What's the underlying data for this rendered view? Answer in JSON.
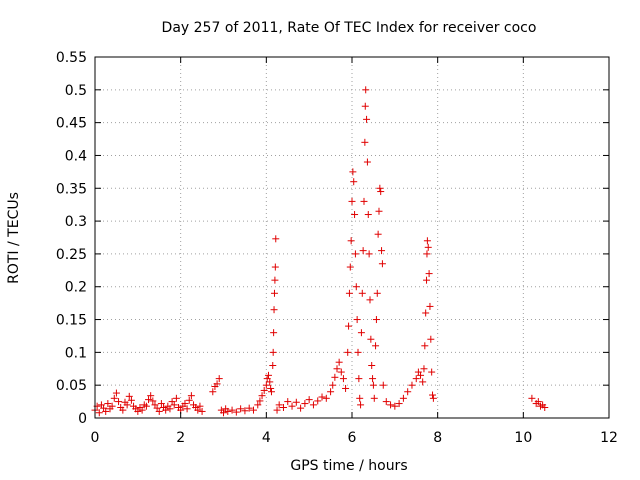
{
  "chart_data": {
    "type": "scatter",
    "title": "Day 257 of 2011, Rate Of TEC Index for receiver coco",
    "xlabel": "GPS time / hours",
    "ylabel": "ROTI / TECUs",
    "xlim": [
      0,
      12
    ],
    "ylim": [
      0,
      0.55
    ],
    "xticks": [
      "0",
      "2",
      "4",
      "6",
      "8",
      "10",
      "12"
    ],
    "yticks": [
      "0",
      "0.05",
      "0.1",
      "0.15",
      "0.2",
      "0.25",
      "0.3",
      "0.35",
      "0.4",
      "0.45",
      "0.5",
      "0.55"
    ],
    "grid": true,
    "marker": "+",
    "color": "#e00000",
    "points": [
      [
        0.0,
        0.012
      ],
      [
        0.05,
        0.018
      ],
      [
        0.1,
        0.008
      ],
      [
        0.15,
        0.02
      ],
      [
        0.2,
        0.015
      ],
      [
        0.25,
        0.01
      ],
      [
        0.3,
        0.022
      ],
      [
        0.35,
        0.014
      ],
      [
        0.4,
        0.018
      ],
      [
        0.45,
        0.03
      ],
      [
        0.5,
        0.038
      ],
      [
        0.55,
        0.025
      ],
      [
        0.6,
        0.016
      ],
      [
        0.65,
        0.012
      ],
      [
        0.7,
        0.024
      ],
      [
        0.75,
        0.02
      ],
      [
        0.8,
        0.033
      ],
      [
        0.85,
        0.027
      ],
      [
        0.9,
        0.018
      ],
      [
        0.95,
        0.014
      ],
      [
        1.0,
        0.01
      ],
      [
        1.05,
        0.016
      ],
      [
        1.1,
        0.012
      ],
      [
        1.15,
        0.02
      ],
      [
        1.2,
        0.018
      ],
      [
        1.25,
        0.028
      ],
      [
        1.3,
        0.034
      ],
      [
        1.35,
        0.026
      ],
      [
        1.4,
        0.02
      ],
      [
        1.45,
        0.015
      ],
      [
        1.5,
        0.01
      ],
      [
        1.55,
        0.022
      ],
      [
        1.6,
        0.016
      ],
      [
        1.65,
        0.012
      ],
      [
        1.7,
        0.018
      ],
      [
        1.75,
        0.014
      ],
      [
        1.8,
        0.025
      ],
      [
        1.85,
        0.02
      ],
      [
        1.9,
        0.03
      ],
      [
        1.95,
        0.016
      ],
      [
        2.0,
        0.012
      ],
      [
        2.05,
        0.018
      ],
      [
        2.1,
        0.022
      ],
      [
        2.15,
        0.014
      ],
      [
        2.2,
        0.027
      ],
      [
        2.25,
        0.034
      ],
      [
        2.3,
        0.02
      ],
      [
        2.35,
        0.016
      ],
      [
        2.4,
        0.012
      ],
      [
        2.45,
        0.018
      ],
      [
        2.5,
        0.01
      ],
      [
        2.75,
        0.04
      ],
      [
        2.8,
        0.048
      ],
      [
        2.85,
        0.052
      ],
      [
        2.9,
        0.06
      ],
      [
        2.95,
        0.012
      ],
      [
        3.0,
        0.008
      ],
      [
        3.05,
        0.014
      ],
      [
        3.1,
        0.01
      ],
      [
        3.2,
        0.012
      ],
      [
        3.3,
        0.009
      ],
      [
        3.4,
        0.014
      ],
      [
        3.5,
        0.011
      ],
      [
        3.6,
        0.015
      ],
      [
        3.7,
        0.012
      ],
      [
        3.8,
        0.02
      ],
      [
        3.85,
        0.026
      ],
      [
        3.9,
        0.034
      ],
      [
        3.95,
        0.042
      ],
      [
        4.0,
        0.05
      ],
      [
        4.02,
        0.06
      ],
      [
        4.05,
        0.065
      ],
      [
        4.08,
        0.055
      ],
      [
        4.1,
        0.045
      ],
      [
        4.12,
        0.04
      ],
      [
        4.15,
        0.08
      ],
      [
        4.16,
        0.1
      ],
      [
        4.17,
        0.13
      ],
      [
        4.18,
        0.165
      ],
      [
        4.19,
        0.19
      ],
      [
        4.2,
        0.21
      ],
      [
        4.21,
        0.23
      ],
      [
        4.22,
        0.273
      ],
      [
        4.25,
        0.012
      ],
      [
        4.3,
        0.02
      ],
      [
        4.4,
        0.016
      ],
      [
        4.5,
        0.025
      ],
      [
        4.6,
        0.018
      ],
      [
        4.7,
        0.024
      ],
      [
        4.8,
        0.015
      ],
      [
        4.9,
        0.022
      ],
      [
        5.0,
        0.028
      ],
      [
        5.1,
        0.02
      ],
      [
        5.2,
        0.026
      ],
      [
        5.3,
        0.032
      ],
      [
        5.4,
        0.03
      ],
      [
        5.5,
        0.04
      ],
      [
        5.55,
        0.05
      ],
      [
        5.6,
        0.062
      ],
      [
        5.65,
        0.075
      ],
      [
        5.7,
        0.085
      ],
      [
        5.75,
        0.07
      ],
      [
        5.8,
        0.06
      ],
      [
        5.85,
        0.045
      ],
      [
        5.9,
        0.1
      ],
      [
        5.92,
        0.14
      ],
      [
        5.94,
        0.19
      ],
      [
        5.96,
        0.23
      ],
      [
        5.98,
        0.27
      ],
      [
        6.0,
        0.33
      ],
      [
        6.02,
        0.375
      ],
      [
        6.04,
        0.36
      ],
      [
        6.06,
        0.31
      ],
      [
        6.08,
        0.25
      ],
      [
        6.1,
        0.2
      ],
      [
        6.12,
        0.15
      ],
      [
        6.14,
        0.1
      ],
      [
        6.16,
        0.06
      ],
      [
        6.18,
        0.03
      ],
      [
        6.2,
        0.02
      ],
      [
        6.22,
        0.13
      ],
      [
        6.24,
        0.19
      ],
      [
        6.26,
        0.255
      ],
      [
        6.28,
        0.33
      ],
      [
        6.3,
        0.42
      ],
      [
        6.31,
        0.475
      ],
      [
        6.32,
        0.5
      ],
      [
        6.34,
        0.455
      ],
      [
        6.36,
        0.39
      ],
      [
        6.38,
        0.31
      ],
      [
        6.4,
        0.25
      ],
      [
        6.42,
        0.18
      ],
      [
        6.44,
        0.12
      ],
      [
        6.46,
        0.08
      ],
      [
        6.48,
        0.06
      ],
      [
        6.5,
        0.05
      ],
      [
        6.52,
        0.03
      ],
      [
        6.55,
        0.11
      ],
      [
        6.57,
        0.15
      ],
      [
        6.59,
        0.19
      ],
      [
        6.61,
        0.28
      ],
      [
        6.63,
        0.315
      ],
      [
        6.65,
        0.35
      ],
      [
        6.67,
        0.345
      ],
      [
        6.69,
        0.255
      ],
      [
        6.71,
        0.235
      ],
      [
        6.73,
        0.05
      ],
      [
        6.8,
        0.025
      ],
      [
        6.9,
        0.02
      ],
      [
        7.0,
        0.018
      ],
      [
        7.1,
        0.022
      ],
      [
        7.2,
        0.03
      ],
      [
        7.3,
        0.04
      ],
      [
        7.4,
        0.05
      ],
      [
        7.5,
        0.06
      ],
      [
        7.55,
        0.07
      ],
      [
        7.6,
        0.065
      ],
      [
        7.65,
        0.055
      ],
      [
        7.68,
        0.075
      ],
      [
        7.7,
        0.11
      ],
      [
        7.72,
        0.16
      ],
      [
        7.74,
        0.21
      ],
      [
        7.75,
        0.25
      ],
      [
        7.76,
        0.27
      ],
      [
        7.78,
        0.26
      ],
      [
        7.8,
        0.22
      ],
      [
        7.82,
        0.17
      ],
      [
        7.84,
        0.12
      ],
      [
        7.86,
        0.07
      ],
      [
        7.88,
        0.035
      ],
      [
        7.9,
        0.03
      ],
      [
        10.2,
        0.03
      ],
      [
        10.3,
        0.022
      ],
      [
        10.35,
        0.025
      ],
      [
        10.4,
        0.018
      ],
      [
        10.45,
        0.02
      ],
      [
        10.5,
        0.016
      ]
    ]
  }
}
